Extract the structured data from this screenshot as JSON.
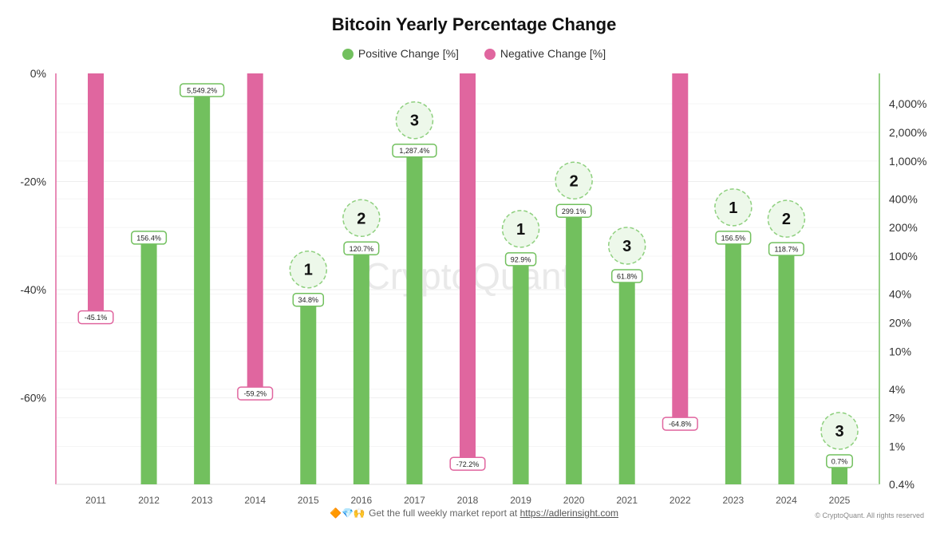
{
  "chart_data": {
    "type": "bar",
    "title": "Bitcoin Yearly Percentage Change",
    "legend": [
      {
        "name": "Positive Change [%]",
        "color": "#72c05e"
      },
      {
        "name": "Negative Change [%]",
        "color": "#e0669f"
      }
    ],
    "legend_placement": "top-center",
    "categories": [
      "2011",
      "2012",
      "2013",
      "2014",
      "2015",
      "2016",
      "2017",
      "2018",
      "2019",
      "2020",
      "2021",
      "2022",
      "2023",
      "2024",
      "2025"
    ],
    "series": [
      {
        "name": "Positive Change [%]",
        "axis": "right",
        "scale": "log",
        "values": [
          null,
          156.4,
          5549.2,
          null,
          34.8,
          120.7,
          1287.4,
          null,
          92.9,
          299.1,
          61.8,
          null,
          156.5,
          118.7,
          0.7
        ]
      },
      {
        "name": "Negative Change [%]",
        "axis": "left",
        "scale": "linear",
        "values": [
          -45.1,
          null,
          null,
          -59.2,
          null,
          null,
          null,
          -72.2,
          null,
          null,
          null,
          -64.8,
          null,
          null,
          null
        ]
      }
    ],
    "data_labels": [
      "-45.1%",
      "156.4%",
      "5,549.2%",
      "-59.2%",
      "34.8%",
      "120.7%",
      "1,287.4%",
      "-72.2%",
      "92.9%",
      "299.1%",
      "61.8%",
      "-64.8%",
      "156.5%",
      "118.7%",
      "0.7%"
    ],
    "cycle_markers": [
      null,
      null,
      null,
      null,
      "1",
      "2",
      "3",
      null,
      "1",
      "2",
      "3",
      null,
      "1",
      "2",
      "3"
    ],
    "left_axis": {
      "ticks": [
        0,
        -20,
        -40,
        -60
      ],
      "tick_labels": [
        "0%",
        "-20%",
        "-40%",
        "-60%"
      ],
      "ylim": [
        -76,
        0
      ]
    },
    "right_axis": {
      "scale": "log",
      "ticks": [
        4000,
        2000,
        1000,
        400,
        200,
        100,
        40,
        20,
        10,
        4,
        2,
        1,
        0.4
      ],
      "tick_labels": [
        "4,000%",
        "2,000%",
        "1,000%",
        "400%",
        "200%",
        "100%",
        "40%",
        "20%",
        "10%",
        "4%",
        "2%",
        "1%",
        "0.4%"
      ]
    },
    "watermark": "CryptoQuant",
    "grid": true
  },
  "footer": {
    "emojis": "🔶💎🙌",
    "text": "Get the full weekly market report at ",
    "link": "https://adlerinsight.com"
  },
  "credit": "© CryptoQuant. All rights reserved"
}
